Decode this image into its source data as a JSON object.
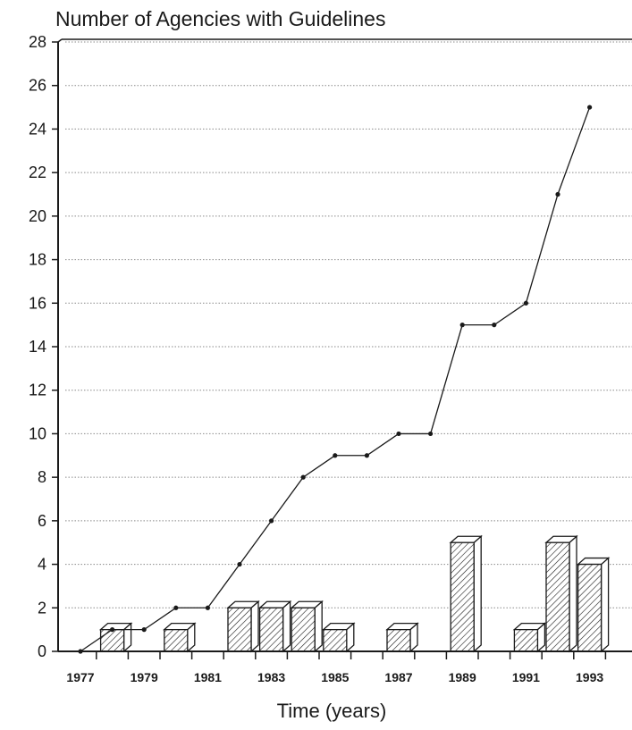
{
  "chart_data": {
    "type": "bar",
    "title": "Number of Agencies with Guidelines",
    "xlabel": "Time (years)",
    "ylabel": "",
    "ylim": [
      0,
      28
    ],
    "yticks": [
      0,
      2,
      4,
      6,
      8,
      10,
      12,
      14,
      16,
      18,
      20,
      22,
      24,
      26,
      28
    ],
    "xlim": [
      1977,
      1994
    ],
    "xtick_labels": [
      "1977",
      "1979",
      "1981",
      "1983",
      "1985",
      "1987",
      "1989",
      "1991",
      "1993"
    ],
    "grid": true,
    "bar_style": "3d-hatched",
    "bars": {
      "x": [
        1978,
        1980,
        1982,
        1983,
        1984,
        1985,
        1987,
        1989,
        1991,
        1992,
        1993
      ],
      "values": [
        1,
        1,
        2,
        2,
        2,
        1,
        1,
        5,
        1,
        5,
        4
      ]
    },
    "line": {
      "x": [
        1977,
        1978,
        1979,
        1980,
        1981,
        1982,
        1983,
        1984,
        1985,
        1986,
        1987,
        1988,
        1989,
        1990,
        1991,
        1992,
        1993
      ],
      "values": [
        0,
        1,
        1,
        2,
        2,
        4,
        6,
        8,
        9,
        9,
        10,
        10,
        15,
        15,
        16,
        21,
        25
      ]
    }
  }
}
